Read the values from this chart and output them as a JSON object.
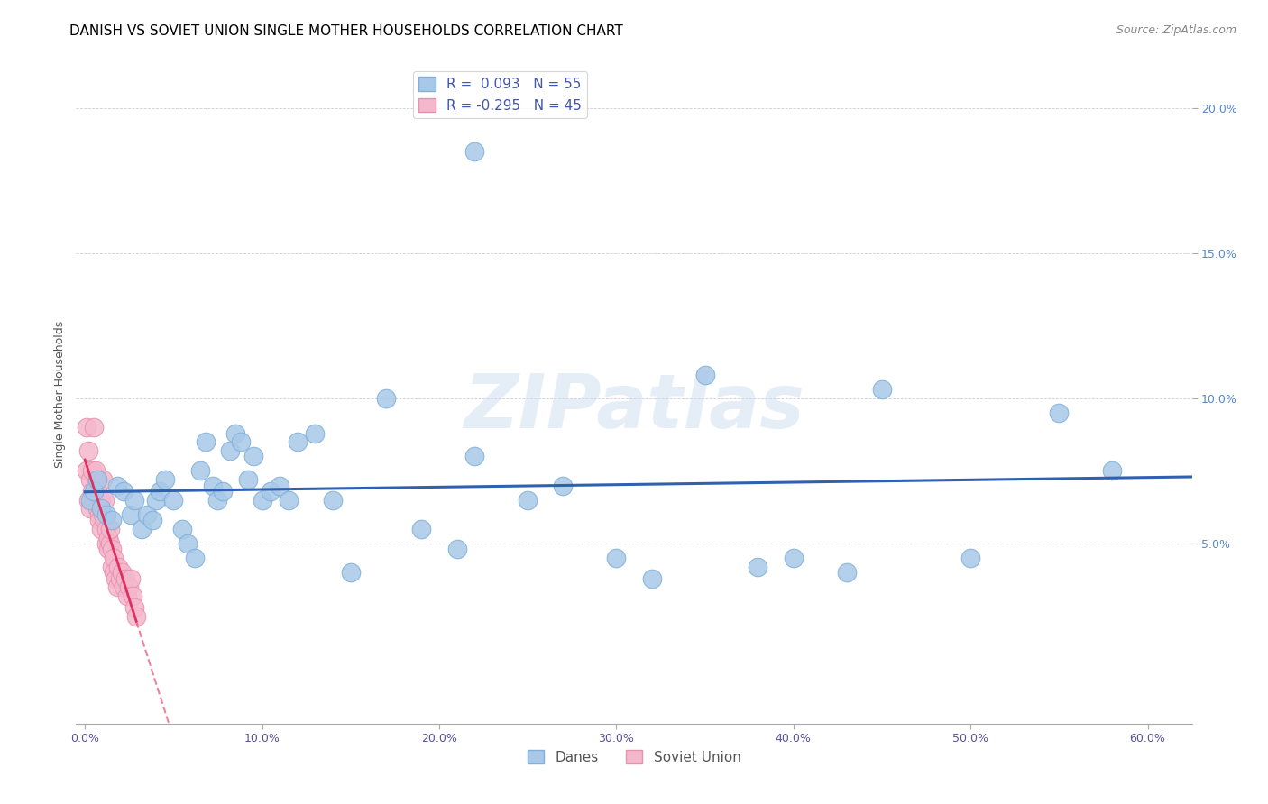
{
  "title": "DANISH VS SOVIET UNION SINGLE MOTHER HOUSEHOLDS CORRELATION CHART",
  "source": "Source: ZipAtlas.com",
  "ylabel": "Single Mother Households",
  "watermark": "ZIPatlas",
  "r_danes": 0.093,
  "n_danes": 55,
  "r_soviet": -0.295,
  "n_soviet": 45,
  "xlim": [
    -0.005,
    0.625
  ],
  "ylim": [
    -0.012,
    0.215
  ],
  "xticks": [
    0.0,
    0.1,
    0.2,
    0.3,
    0.4,
    0.5,
    0.6
  ],
  "yticks_right": [
    0.05,
    0.1,
    0.15,
    0.2
  ],
  "xtick_labels": [
    "0.0%",
    "10.0%",
    "20.0%",
    "30.0%",
    "40.0%",
    "50.0%",
    "60.0%"
  ],
  "ytick_labels_right": [
    "5.0%",
    "10.0%",
    "15.0%",
    "20.0%"
  ],
  "color_danes": "#a8c8e8",
  "color_soviet": "#f4b8cc",
  "color_danes_line": "#3060b0",
  "color_soviet_line": "#e03060",
  "danes_x": [
    0.003,
    0.005,
    0.007,
    0.009,
    0.012,
    0.015,
    0.018,
    0.022,
    0.026,
    0.028,
    0.032,
    0.035,
    0.038,
    0.04,
    0.042,
    0.045,
    0.05,
    0.055,
    0.058,
    0.062,
    0.065,
    0.068,
    0.072,
    0.075,
    0.078,
    0.082,
    0.085,
    0.088,
    0.092,
    0.095,
    0.1,
    0.105,
    0.11,
    0.115,
    0.12,
    0.13,
    0.14,
    0.15,
    0.17,
    0.19,
    0.21,
    0.22,
    0.25,
    0.27,
    0.3,
    0.32,
    0.35,
    0.38,
    0.4,
    0.43,
    0.45,
    0.5,
    0.55,
    0.58,
    0.22
  ],
  "danes_y": [
    0.065,
    0.068,
    0.072,
    0.062,
    0.06,
    0.058,
    0.07,
    0.068,
    0.06,
    0.065,
    0.055,
    0.06,
    0.058,
    0.065,
    0.068,
    0.072,
    0.065,
    0.055,
    0.05,
    0.045,
    0.075,
    0.085,
    0.07,
    0.065,
    0.068,
    0.082,
    0.088,
    0.085,
    0.072,
    0.08,
    0.065,
    0.068,
    0.07,
    0.065,
    0.085,
    0.088,
    0.065,
    0.04,
    0.1,
    0.055,
    0.048,
    0.08,
    0.065,
    0.07,
    0.045,
    0.038,
    0.108,
    0.042,
    0.045,
    0.04,
    0.103,
    0.045,
    0.095,
    0.075,
    0.185
  ],
  "soviet_x": [
    0.001,
    0.001,
    0.002,
    0.002,
    0.003,
    0.003,
    0.004,
    0.004,
    0.005,
    0.005,
    0.006,
    0.006,
    0.007,
    0.007,
    0.008,
    0.008,
    0.009,
    0.009,
    0.01,
    0.01,
    0.011,
    0.011,
    0.012,
    0.012,
    0.013,
    0.013,
    0.014,
    0.014,
    0.015,
    0.015,
    0.016,
    0.016,
    0.017,
    0.018,
    0.019,
    0.02,
    0.021,
    0.022,
    0.023,
    0.024,
    0.025,
    0.026,
    0.027,
    0.028,
    0.029
  ],
  "soviet_y": [
    0.09,
    0.075,
    0.082,
    0.065,
    0.072,
    0.062,
    0.075,
    0.068,
    0.09,
    0.065,
    0.07,
    0.075,
    0.062,
    0.068,
    0.06,
    0.058,
    0.065,
    0.055,
    0.072,
    0.06,
    0.065,
    0.058,
    0.055,
    0.05,
    0.052,
    0.048,
    0.05,
    0.055,
    0.048,
    0.042,
    0.045,
    0.04,
    0.038,
    0.035,
    0.042,
    0.038,
    0.04,
    0.035,
    0.038,
    0.032,
    0.035,
    0.038,
    0.032,
    0.028,
    0.025
  ],
  "title_fontsize": 11,
  "source_fontsize": 9,
  "axis_label_fontsize": 9,
  "tick_fontsize": 9,
  "legend_fontsize": 11
}
